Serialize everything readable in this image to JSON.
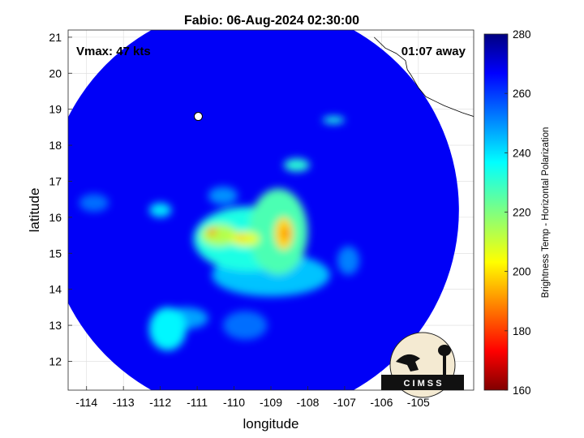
{
  "title": "Fabio: 06-Aug-2024 02:30:00",
  "annotations": {
    "vmax": "Vmax: 47 kts",
    "time_away": "01:07 away"
  },
  "axes": {
    "xlabel": "longitude",
    "ylabel": "latitude",
    "xlim": [
      -114.5,
      -103.5
    ],
    "ylim": [
      11.2,
      21.2
    ],
    "xticks": [
      -114,
      -113,
      -112,
      -111,
      -110,
      -109,
      -108,
      -107,
      -106,
      -105
    ],
    "yticks": [
      12,
      13,
      14,
      15,
      16,
      17,
      18,
      19,
      20,
      21
    ],
    "xtick_labels": [
      "-114",
      "-113",
      "-112",
      "-111",
      "-110",
      "-109",
      "-108",
      "-107",
      "-106",
      "-105"
    ],
    "ytick_labels": [
      "12",
      "13",
      "14",
      "15",
      "16",
      "17",
      "18",
      "19",
      "20",
      "21"
    ],
    "grid": true
  },
  "colorbar": {
    "label": "Brightness Temp - Horizontal Polarization",
    "range": [
      160,
      280
    ],
    "ticks": [
      160,
      180,
      200,
      220,
      240,
      260,
      280
    ],
    "tick_labels": [
      "160",
      "180",
      "200",
      "220",
      "240",
      "260",
      "280"
    ],
    "colormap": "jet"
  },
  "swath": {
    "center": [
      -109.5,
      16.2
    ],
    "radius_deg": 5.6,
    "background_temp": 266,
    "features": [
      {
        "lon": -109.6,
        "lat": 15.4,
        "temp": 232,
        "rlon": 1.5,
        "rlat": 0.9
      },
      {
        "lon": -108.8,
        "lat": 15.6,
        "temp": 226,
        "rlon": 0.8,
        "rlat": 1.2
      },
      {
        "lon": -110.4,
        "lat": 15.5,
        "temp": 214,
        "rlon": 0.5,
        "rlat": 0.3
      },
      {
        "lon": -109.7,
        "lat": 15.4,
        "temp": 208,
        "rlon": 0.4,
        "rlat": 0.2
      },
      {
        "lon": -108.65,
        "lat": 15.55,
        "temp": 200,
        "rlon": 0.25,
        "rlat": 0.45
      },
      {
        "lon": -110.6,
        "lat": 15.6,
        "temp": 190,
        "rlon": 0.12,
        "rlat": 0.1
      },
      {
        "lon": -109.8,
        "lat": 15.45,
        "temp": 196,
        "rlon": 0.1,
        "rlat": 0.07
      },
      {
        "lon": -108.6,
        "lat": 15.55,
        "temp": 188,
        "rlon": 0.09,
        "rlat": 0.16
      },
      {
        "lon": -109.0,
        "lat": 14.4,
        "temp": 242,
        "rlon": 1.6,
        "rlat": 0.6
      },
      {
        "lon": -111.8,
        "lat": 12.9,
        "temp": 236,
        "rlon": 0.5,
        "rlat": 0.6
      },
      {
        "lon": -111.3,
        "lat": 13.2,
        "temp": 246,
        "rlon": 0.6,
        "rlat": 0.3
      },
      {
        "lon": -108.3,
        "lat": 17.45,
        "temp": 230,
        "rlon": 0.35,
        "rlat": 0.18
      },
      {
        "lon": -107.3,
        "lat": 18.7,
        "temp": 232,
        "rlon": 0.3,
        "rlat": 0.1
      },
      {
        "lon": -112.0,
        "lat": 16.2,
        "temp": 238,
        "rlon": 0.3,
        "rlat": 0.2
      },
      {
        "lon": -110.3,
        "lat": 16.6,
        "temp": 248,
        "rlon": 0.4,
        "rlat": 0.25
      },
      {
        "lon": -113.8,
        "lat": 16.4,
        "temp": 252,
        "rlon": 0.4,
        "rlat": 0.25
      },
      {
        "lon": -106.9,
        "lat": 14.8,
        "temp": 250,
        "rlon": 0.3,
        "rlat": 0.4
      },
      {
        "lon": -109.7,
        "lat": 13.0,
        "temp": 252,
        "rlon": 0.6,
        "rlat": 0.4
      }
    ]
  },
  "coastline": [
    [
      -106.2,
      21.0
    ],
    [
      -105.9,
      20.7
    ],
    [
      -105.6,
      20.55
    ],
    [
      -105.35,
      20.35
    ],
    [
      -105.3,
      20.1
    ],
    [
      -105.2,
      19.95
    ],
    [
      -105.0,
      19.6
    ],
    [
      -104.8,
      19.35
    ],
    [
      -104.5,
      19.2
    ],
    [
      -104.3,
      19.1
    ],
    [
      -103.8,
      18.9
    ],
    [
      -103.5,
      18.8
    ]
  ],
  "island": {
    "lon": -110.97,
    "lat": 18.8
  },
  "logo": {
    "text": "C I M S S"
  }
}
